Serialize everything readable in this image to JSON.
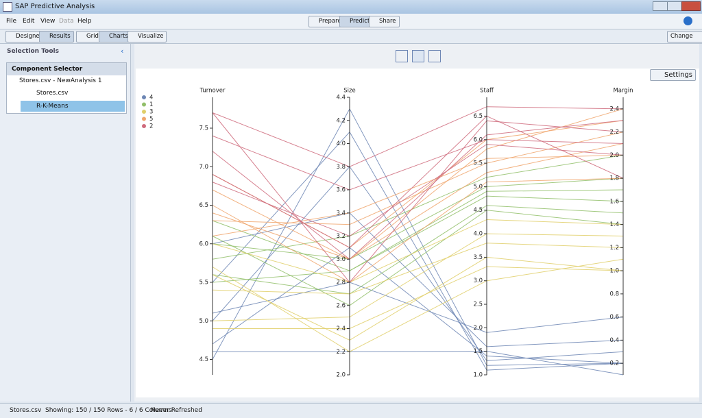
{
  "window": {
    "title": "SAP Predictive Analysis"
  },
  "menu": [
    "File",
    "Edit",
    "View",
    "Data",
    "Help"
  ],
  "modes": [
    "Prepare",
    "Predict",
    "Share"
  ],
  "toolbar": {
    "left": [
      "Designer",
      "Results"
    ],
    "views": [
      "Grid",
      "Charts",
      "Visualize"
    ],
    "right": "Change"
  },
  "sidebar": {
    "title": "Selection Tools",
    "panel": "Component Selector",
    "tree": [
      "Stores.csv - NewAnalysis 1",
      "Stores.csv",
      "R-K-Means"
    ]
  },
  "settings": "Settings",
  "status": [
    "Stores.csv",
    "Showing: 150 / 150 Rows - 6 / 6 Columns",
    "Never Refreshed"
  ],
  "chart_data": {
    "type": "parallel",
    "axes": [
      {
        "name": "Turnover",
        "ylim": [
          4.3,
          7.9
        ],
        "yticks": [
          4.5,
          {
            "value": 5,
            "label": "5.0"
          },
          5.5,
          {
            "value": 6,
            "label": "6.0"
          },
          6.5,
          {
            "value": 7,
            "label": "7.0"
          },
          7.5
        ]
      },
      {
        "name": "Size",
        "ylim": [
          2,
          4.4
        ],
        "yticks": [
          {
            "value": 2,
            "label": "2.0"
          },
          2.2,
          2.4,
          2.6,
          2.8,
          {
            "value": 3,
            "label": "3.0"
          },
          3.2,
          3.4,
          3.6,
          3.8,
          {
            "value": 4,
            "label": "4.0"
          },
          4.2,
          4.4
        ]
      },
      {
        "name": "Staff",
        "ylim": [
          1,
          6.9
        ],
        "yticks": [
          {
            "value": 1,
            "label": "1.0"
          },
          1.5,
          {
            "value": 2,
            "label": "2.0"
          },
          2.5,
          {
            "value": 3,
            "label": "3.0"
          },
          3.5,
          {
            "value": 4,
            "label": "4.0"
          },
          4.5,
          {
            "value": 5,
            "label": "5.0"
          },
          5.5,
          {
            "value": 6,
            "label": "6.0"
          },
          6.5
        ]
      },
      {
        "name": "Margin",
        "ylim": [
          0.1,
          2.5
        ],
        "yticks": [
          0.2,
          0.4,
          0.6,
          0.8,
          {
            "value": 1,
            "label": "1.0"
          },
          1.2,
          1.4,
          1.6,
          1.8,
          {
            "value": 2,
            "label": "2.0"
          },
          2.2,
          2.4
        ]
      }
    ],
    "series": [
      {
        "name": "4",
        "color": "#6d86b4",
        "values": [
          [
            4.5,
            4.3,
            1.2,
            0.2
          ],
          [
            4.6,
            2.2,
            1.5,
            0.1
          ],
          [
            5.0,
            3.8,
            1.3,
            0.3
          ],
          [
            5.1,
            2.8,
            1.9,
            0.6
          ],
          [
            5.5,
            4.1,
            1.1,
            0.2
          ],
          [
            6.0,
            3.4,
            1.6,
            0.4
          ],
          [
            4.7,
            3.1,
            1.4,
            0.2
          ]
        ]
      },
      {
        "name": "1",
        "color": "#92bf6a",
        "values": [
          [
            5.6,
            2.7,
            4.6,
            1.5
          ],
          [
            6.0,
            3.0,
            5.0,
            1.8
          ],
          [
            6.3,
            2.9,
            4.8,
            1.6
          ],
          [
            5.8,
            3.2,
            5.2,
            2.0
          ],
          [
            6.1,
            2.6,
            4.5,
            1.4
          ],
          [
            5.5,
            2.9,
            4.9,
            1.7
          ]
        ]
      },
      {
        "name": "3",
        "color": "#e0cf6a",
        "values": [
          [
            4.9,
            2.4,
            3.3,
            1.0
          ],
          [
            5.4,
            2.7,
            3.8,
            1.2
          ],
          [
            5.7,
            2.2,
            3.0,
            1.1
          ],
          [
            5.0,
            2.5,
            4.0,
            1.3
          ],
          [
            6.0,
            2.8,
            4.3,
            1.4
          ],
          [
            5.6,
            2.3,
            3.5,
            1.0
          ]
        ]
      },
      {
        "name": "5",
        "color": "#f0a66d",
        "values": [
          [
            6.3,
            3.3,
            5.5,
            2.2
          ],
          [
            6.7,
            3.0,
            5.8,
            2.4
          ],
          [
            6.5,
            2.8,
            5.1,
            1.8
          ],
          [
            6.9,
            3.1,
            6.0,
            2.3
          ],
          [
            6.1,
            3.4,
            5.6,
            2.0
          ],
          [
            6.4,
            3.0,
            5.3,
            2.1
          ]
        ]
      },
      {
        "name": "2",
        "color": "#cf6b7d",
        "values": [
          [
            7.7,
            3.8,
            6.7,
            2.4
          ],
          [
            7.2,
            3.0,
            6.1,
            2.3
          ],
          [
            6.8,
            3.2,
            5.9,
            2.0
          ],
          [
            7.7,
            2.8,
            6.4,
            2.2
          ],
          [
            6.9,
            3.1,
            6.5,
            1.8
          ],
          [
            7.4,
            3.6,
            6.0,
            2.1
          ]
        ]
      }
    ]
  }
}
